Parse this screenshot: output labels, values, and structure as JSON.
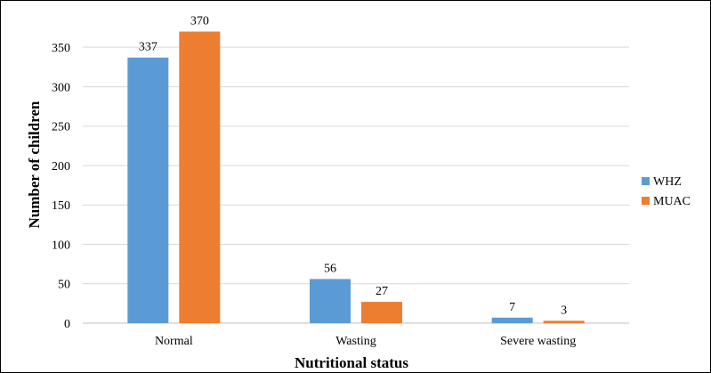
{
  "chart_data": {
    "type": "bar",
    "title": "",
    "xlabel": "Nutritional status",
    "ylabel": "Number of children",
    "categories": [
      "Normal",
      "Wasting",
      "Severe wasting"
    ],
    "series": [
      {
        "name": "WHZ",
        "values": [
          337,
          56,
          7
        ],
        "color": "#5B9BD5"
      },
      {
        "name": "MUAC",
        "values": [
          370,
          27,
          3
        ],
        "color": "#ED7D31"
      }
    ],
    "ylim": [
      0,
      400
    ],
    "yticks": [
      0,
      50,
      100,
      150,
      200,
      250,
      300,
      350
    ],
    "grid": true,
    "gridline_color": "#D9D9D9",
    "legend": "right"
  }
}
